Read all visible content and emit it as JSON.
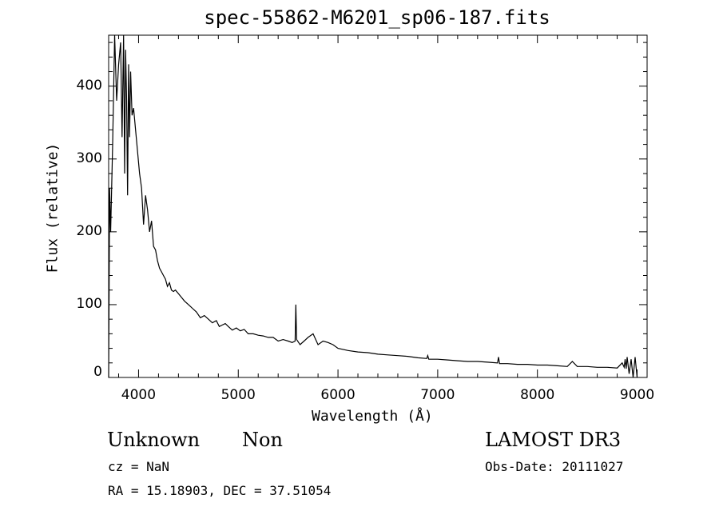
{
  "chart_data": {
    "type": "line",
    "title": "spec-55862-M6201_sp06-187.fits",
    "xlabel": "Wavelength (Å)",
    "ylabel": "Flux (relative)",
    "xlim": [
      3700,
      9100
    ],
    "ylim": [
      0,
      470
    ],
    "xticks": [
      4000,
      5000,
      6000,
      7000,
      8000,
      9000
    ],
    "yticks": [
      0,
      100,
      200,
      300,
      400
    ],
    "grid": false,
    "series": [
      {
        "name": "flux",
        "x": [
          3700,
          3710,
          3720,
          3740,
          3760,
          3780,
          3800,
          3820,
          3835,
          3850,
          3860,
          3870,
          3880,
          3890,
          3900,
          3910,
          3920,
          3935,
          3950,
          3970,
          3990,
          4010,
          4030,
          4050,
          4070,
          4090,
          4110,
          4130,
          4150,
          4170,
          4190,
          4210,
          4230,
          4250,
          4270,
          4290,
          4310,
          4330,
          4350,
          4370,
          4400,
          4430,
          4460,
          4500,
          4540,
          4580,
          4620,
          4660,
          4700,
          4740,
          4780,
          4810,
          4840,
          4870,
          4900,
          4940,
          4980,
          5020,
          5060,
          5100,
          5150,
          5200,
          5250,
          5300,
          5350,
          5400,
          5450,
          5500,
          5540,
          5570,
          5577,
          5585,
          5620,
          5660,
          5700,
          5750,
          5800,
          5850,
          5900,
          5950,
          6000,
          6100,
          6200,
          6300,
          6400,
          6500,
          6600,
          6700,
          6800,
          6890,
          6900,
          6910,
          7000,
          7100,
          7200,
          7300,
          7400,
          7500,
          7600,
          7610,
          7620,
          7700,
          7800,
          7900,
          8000,
          8100,
          8200,
          8300,
          8350,
          8400,
          8500,
          8600,
          8700,
          8800,
          8850,
          8870,
          8880,
          8890,
          8900,
          8920,
          8940,
          8960,
          8980,
          9000
        ],
        "values": [
          0,
          260,
          200,
          320,
          470,
          380,
          430,
          460,
          330,
          470,
          280,
          450,
          380,
          250,
          430,
          330,
          420,
          360,
          370,
          340,
          310,
          280,
          260,
          210,
          250,
          230,
          200,
          215,
          180,
          175,
          160,
          150,
          145,
          140,
          135,
          125,
          130,
          120,
          118,
          120,
          115,
          110,
          105,
          100,
          95,
          90,
          82,
          85,
          80,
          75,
          78,
          70,
          72,
          74,
          70,
          65,
          68,
          64,
          66,
          60,
          60,
          58,
          57,
          55,
          55,
          50,
          52,
          50,
          48,
          50,
          100,
          52,
          45,
          50,
          55,
          60,
          45,
          50,
          48,
          45,
          40,
          37,
          35,
          34,
          32,
          31,
          30,
          29,
          27,
          26,
          30,
          25,
          25,
          24,
          23,
          22,
          22,
          21,
          20,
          28,
          19,
          19,
          18,
          18,
          17,
          17,
          16,
          15,
          22,
          15,
          15,
          14,
          14,
          13,
          20,
          14,
          25,
          12,
          28,
          5,
          25,
          0,
          28,
          0
        ]
      }
    ]
  },
  "annotations": {
    "classification": "Unknown",
    "subclass": "Non",
    "survey": "LAMOST DR3",
    "redshift": "cz = NaN",
    "obs_date": "Obs-Date: 20111027",
    "coords": "RA =  15.18903, DEC =  37.51054"
  }
}
